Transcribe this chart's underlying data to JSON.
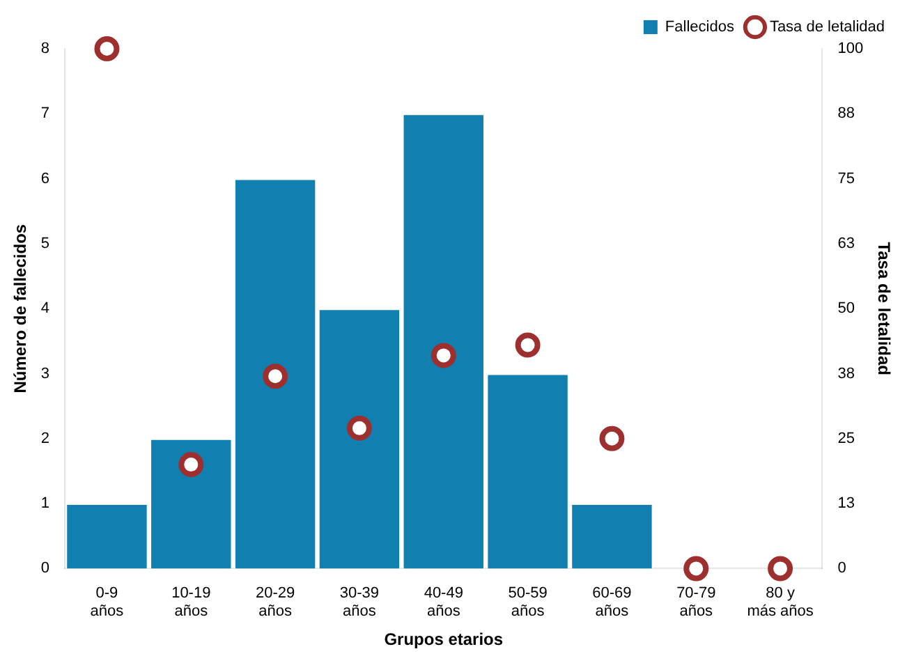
{
  "chart_data": {
    "type": "bar",
    "xlabel": "Grupos etarios",
    "ylabel": "Número de fallecidos",
    "y2label": "Tasa de letalidad",
    "categories": [
      "0-9\naños",
      "10-19\naños",
      "20-29\naños",
      "30-39\naños",
      "40-49\naños",
      "50-59\naños",
      "60-69\naños",
      "70-79\naños",
      "80 y\nmás años"
    ],
    "series": [
      {
        "name": "Fallecidos",
        "color": "#1180b0",
        "values": [
          1,
          2,
          6,
          4,
          7,
          3,
          1,
          0,
          0
        ]
      },
      {
        "name": "Tasa de letalidad",
        "type": "scatter",
        "axis": "y2",
        "color": "#9e2f2f",
        "marker": "circle",
        "values": [
          100,
          20,
          37,
          27,
          41,
          43,
          25,
          0,
          0
        ]
      }
    ],
    "ylim": [
      0,
      8
    ],
    "yticks": [
      0,
      1,
      2,
      3,
      4,
      5,
      6,
      7,
      8
    ],
    "y2lim": [
      0,
      100
    ],
    "y2ticks": [
      0,
      {
        "value": 12.5,
        "label": "13"
      },
      25,
      {
        "value": 37.5,
        "label": "38"
      },
      50,
      {
        "value": 62.5,
        "label": "63"
      },
      75,
      {
        "value": 87.5,
        "label": "88"
      },
      100
    ],
    "grid": false,
    "legend": "top right"
  }
}
